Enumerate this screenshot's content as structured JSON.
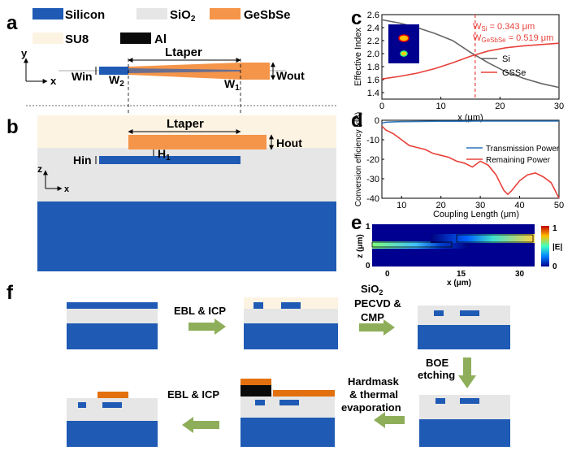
{
  "panel_labels": {
    "a": "a",
    "b": "b",
    "c": "c",
    "d": "d",
    "e": "e",
    "f": "f"
  },
  "legend": {
    "silicon": "Silicon",
    "sio2": "SiO",
    "sio2_sub": "2",
    "gesbse": "GeSbSe",
    "su8": "SU8",
    "al": "Al"
  },
  "colors": {
    "silicon": "#1f5ab4",
    "sio2": "#e6e6e6",
    "gesbse": "#f5954a",
    "su8": "#fdf3e3",
    "al": "#0a0a0a",
    "si_curve": "#666666",
    "gsse_curve": "#e8403a",
    "transmission": "#2a73b8",
    "remaining": "#e8403a",
    "arrow": "#8fae5a"
  },
  "panel_a": {
    "axis_y": "y",
    "axis_x": "x",
    "ltaper": "Ltaper",
    "win": "Win",
    "w2": "W",
    "w2_sub": "2",
    "w1": "W",
    "w1_sub": "1",
    "wout": "Wout"
  },
  "panel_b": {
    "ltaper": "Ltaper",
    "hout": "Hout",
    "h1": "H",
    "h1_sub": "1",
    "hin": "Hin",
    "axis_z": "z",
    "axis_x": "x"
  },
  "panel_c_text": {
    "wsi_label": "W",
    "wsi_sub": "Si",
    "wsi_val": " = 0.343 μm",
    "wgss_label": "W",
    "wgss_sub": "GeSbSe",
    "wgss_val": " = 0.519 μm"
  },
  "panel_e": {
    "ylabel": "z (μm)",
    "xlabel": "x (μm)",
    "xticks": [
      "0",
      "15",
      "30"
    ],
    "yticks": [
      "0",
      "1"
    ],
    "cb_max": "1",
    "cb_min": "0",
    "cb_label": "|E|"
  },
  "panel_f": {
    "step1": "EBL & ICP",
    "step2_l1": "SiO",
    "step2_sub": "2",
    "step2_l2": "PECVD &",
    "step2_l3": "CMP",
    "step3_l1": "BOE",
    "step3_l2": "etching",
    "step4_l1": "Hardmask",
    "step4_l2": "& thermal",
    "step4_l3": "evaporation",
    "step5": "EBL & ICP"
  },
  "chart_data": [
    {
      "type": "line",
      "title": "",
      "xlabel": "x (μm)",
      "ylabel": "Effective Index",
      "xlim": [
        0,
        30
      ],
      "ylim": [
        1.3,
        2.6
      ],
      "xticks": [
        0,
        10,
        20,
        30
      ],
      "yticks": [
        1.4,
        1.6,
        1.8,
        2.0,
        2.2,
        2.4,
        2.6
      ],
      "marker_x": 15.8,
      "series": [
        {
          "name": "Si",
          "x": [
            0,
            3,
            6,
            9,
            12,
            15,
            18,
            21,
            24,
            27,
            30
          ],
          "y": [
            2.52,
            2.47,
            2.4,
            2.31,
            2.2,
            2.02,
            1.86,
            1.72,
            1.62,
            1.54,
            1.48
          ]
        },
        {
          "name": "GSSe",
          "x": [
            0,
            3,
            6,
            9,
            12,
            15,
            18,
            21,
            24,
            27,
            30
          ],
          "y": [
            1.61,
            1.65,
            1.7,
            1.77,
            1.86,
            1.96,
            2.04,
            2.09,
            2.12,
            2.14,
            2.16
          ]
        }
      ]
    },
    {
      "type": "line",
      "title": "",
      "xlabel": "Coupling Length (μm)",
      "ylabel": "Conversion efficiency (dB)",
      "xlim": [
        5,
        50
      ],
      "ylim": [
        -40,
        0
      ],
      "xticks": [
        10,
        20,
        30,
        40,
        50
      ],
      "yticks": [
        0,
        -10,
        -20,
        -30,
        -40
      ],
      "series": [
        {
          "name": "Transmission Power",
          "x": [
            5,
            6,
            8,
            10,
            15,
            20,
            25,
            30,
            35,
            40,
            45,
            50
          ],
          "y": [
            -1.5,
            -1.0,
            -0.8,
            -0.7,
            -0.6,
            -0.5,
            -0.5,
            -0.4,
            -0.4,
            -0.4,
            -0.4,
            -0.4
          ]
        },
        {
          "name": "Remaining Power",
          "x": [
            5,
            6,
            8,
            10,
            12,
            14,
            16,
            18,
            20,
            22,
            24,
            26,
            28,
            30,
            32,
            34,
            35,
            36,
            37,
            38,
            40,
            42,
            44,
            46,
            48,
            49,
            50
          ],
          "y": [
            -3,
            -5,
            -7,
            -10,
            -13,
            -14,
            -15,
            -17,
            -18,
            -19,
            -21,
            -22,
            -24,
            -21,
            -23,
            -28,
            -32,
            -36,
            -38,
            -36,
            -31,
            -28,
            -27,
            -29,
            -32,
            -36,
            -40
          ]
        }
      ]
    }
  ]
}
